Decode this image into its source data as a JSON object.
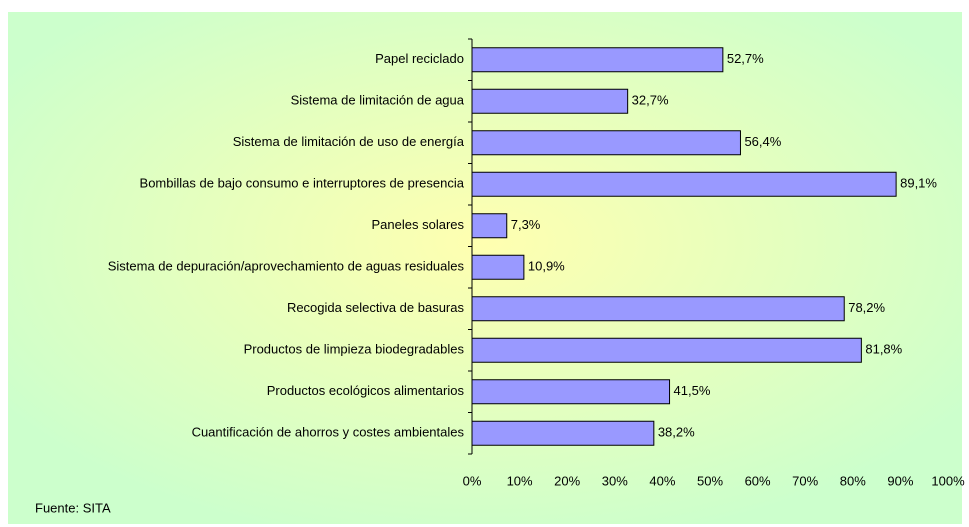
{
  "chart_data": {
    "type": "bar",
    "orientation": "horizontal",
    "categories": [
      "Papel reciclado",
      "Sistema de limitación de agua",
      "Sistema de limitación de uso de energía",
      "Bombillas de bajo consumo e interruptores de presencia",
      "Paneles solares",
      "Sistema de depuración/aprovechamiento de aguas residuales",
      "Recogida selectiva de basuras",
      "Productos de limpieza biodegradables",
      "Productos ecológicos alimentarios",
      "Cuantificación de ahorros y costes ambientales"
    ],
    "values": [
      52.7,
      32.7,
      56.4,
      89.1,
      7.3,
      10.9,
      78.2,
      81.8,
      41.5,
      38.2
    ],
    "value_labels": [
      "52,7%",
      "32,7%",
      "56,4%",
      "89,1%",
      "7,3%",
      "10,9%",
      "78,2%",
      "81,8%",
      "41,5%",
      "38,2%"
    ],
    "color": "#9999ff",
    "xlim": [
      0,
      100
    ],
    "xticks": [
      {
        "value": 0,
        "label": "0%"
      },
      {
        "value": 10,
        "label": "10%"
      },
      {
        "value": 20,
        "label": "20%"
      },
      {
        "value": 30,
        "label": "30%"
      },
      {
        "value": 40,
        "label": "40%"
      },
      {
        "value": 50,
        "label": "50%"
      },
      {
        "value": 60,
        "label": "60%"
      },
      {
        "value": 70,
        "label": "70%"
      },
      {
        "value": 80,
        "label": "80%"
      },
      {
        "value": 90,
        "label": "90%"
      },
      {
        "value": 100,
        "label": "100%"
      }
    ],
    "grid": false,
    "source": "Fuente: SITA"
  }
}
